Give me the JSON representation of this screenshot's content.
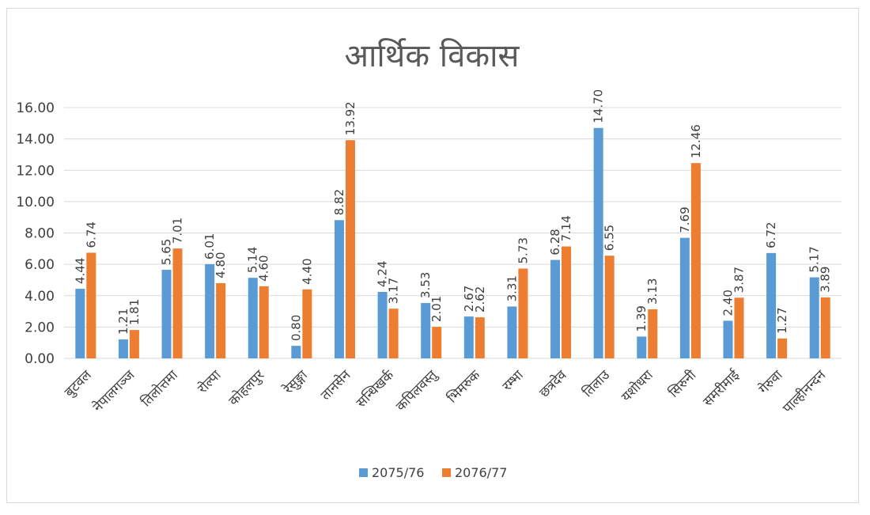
{
  "chart_data": {
    "type": "bar",
    "title": "आर्थिक विकास",
    "xlabel": "",
    "ylabel": "",
    "ylim": [
      0,
      16
    ],
    "yticks": [
      "0.00",
      "2.00",
      "4.00",
      "6.00",
      "8.00",
      "10.00",
      "12.00",
      "14.00",
      "16.00"
    ],
    "grid": true,
    "legend_position": "bottom",
    "categories": [
      "बुटवल",
      "नेपालगञ्ज",
      "तिलोत्तमा",
      "रोल्पा",
      "कोहलपुर",
      "रेसुङ्गा",
      "तानसेन",
      "सन्धिखर्क",
      "कपिलवस्तु",
      "भिमरुक",
      "रम्भा",
      "छत्रदेव",
      "तिलाउ",
      "यशोधरा",
      "सिरुनी",
      "समरीमाई",
      "गेरुवा",
      "पाल्हीनन्दन"
    ],
    "series": [
      {
        "name": "2075/76",
        "color": "#5b9bd5",
        "values": [
          4.44,
          1.21,
          5.65,
          6.01,
          5.14,
          0.8,
          8.82,
          4.24,
          3.53,
          2.67,
          3.31,
          6.28,
          14.7,
          1.39,
          7.69,
          2.4,
          6.72,
          5.17
        ]
      },
      {
        "name": "2076/77",
        "color": "#ed7d31",
        "values": [
          6.74,
          1.81,
          7.01,
          4.8,
          4.6,
          4.4,
          13.92,
          3.17,
          2.01,
          2.62,
          5.73,
          7.14,
          6.55,
          3.13,
          12.46,
          3.87,
          1.27,
          3.89
        ]
      }
    ]
  }
}
